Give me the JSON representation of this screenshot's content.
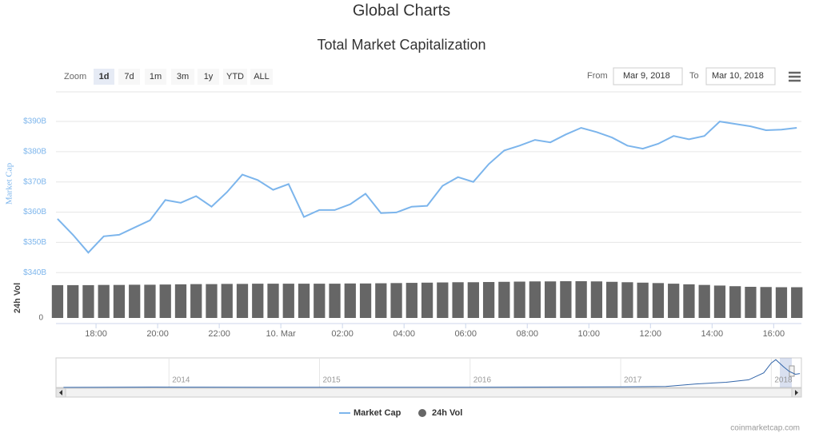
{
  "header": {
    "title": "Global Charts"
  },
  "chart_data": {
    "type": "line",
    "title": "Total Market Capitalization",
    "zoom": {
      "label": "Zoom",
      "buttons": [
        "1d",
        "7d",
        "1m",
        "3m",
        "1y",
        "YTD",
        "ALL"
      ],
      "selected": 0
    },
    "range": {
      "from_label": "From",
      "from": "Mar 9, 2018",
      "to_label": "To",
      "to": "Mar 10, 2018"
    },
    "x": [
      16.75,
      17.25,
      17.75,
      18.25,
      18.75,
      19.25,
      19.75,
      20.25,
      20.75,
      21.25,
      21.75,
      22.25,
      22.75,
      23.25,
      23.75,
      24.25,
      24.75,
      25.25,
      25.75,
      26.25,
      26.75,
      27.25,
      27.75,
      28.25,
      28.75,
      29.25,
      29.75,
      30.25,
      30.75,
      31.25,
      31.75,
      32.25,
      32.75,
      33.25,
      33.75,
      34.25,
      34.75,
      35.25,
      35.75,
      36.25,
      36.75,
      37.25,
      37.75,
      38.25,
      38.75,
      39.25,
      39.75,
      40.25,
      40.75
    ],
    "xlim": [
      16.7,
      40.9
    ],
    "xticks": [
      {
        "value": 18,
        "label": "18:00"
      },
      {
        "value": 20,
        "label": "20:00"
      },
      {
        "value": 22,
        "label": "22:00"
      },
      {
        "value": 24,
        "label": "10. Mar"
      },
      {
        "value": 26,
        "label": "02:00"
      },
      {
        "value": 28,
        "label": "04:00"
      },
      {
        "value": 30,
        "label": "06:00"
      },
      {
        "value": 32,
        "label": "08:00"
      },
      {
        "value": 34,
        "label": "10:00"
      },
      {
        "value": 36,
        "label": "12:00"
      },
      {
        "value": 38,
        "label": "14:00"
      },
      {
        "value": 40,
        "label": "16:00"
      }
    ],
    "ylabel": "Market Cap",
    "ylim": [
      339,
      399
    ],
    "yticks": [
      {
        "value": 340,
        "label": "$340B"
      },
      {
        "value": 350,
        "label": "$350B"
      },
      {
        "value": 360,
        "label": "$360B"
      },
      {
        "value": 370,
        "label": "$370B"
      },
      {
        "value": 380,
        "label": "$380B"
      },
      {
        "value": 390,
        "label": "$390B"
      }
    ],
    "grid": true,
    "y2label": "24h Vol",
    "y2lim": [
      0,
      20
    ],
    "y2ticks": [
      0
    ],
    "series": [
      {
        "name": "Market Cap",
        "color": "#7cb5ec",
        "values": [
          357.8,
          352.5,
          346.6,
          352,
          352.5,
          354.9,
          357.3,
          364,
          363.1,
          365.3,
          361.8,
          366.6,
          372.4,
          370.6,
          367.4,
          369.3,
          358.4,
          360.7,
          360.7,
          362.6,
          366.1,
          359.7,
          359.9,
          361.8,
          362.1,
          368.7,
          371.6,
          370,
          375.9,
          380.4,
          382,
          383.9,
          383.1,
          385.7,
          387.9,
          386.5,
          384.7,
          382,
          381,
          382.6,
          385.2,
          384.1,
          385.2,
          390,
          389.2,
          388.4,
          387.1,
          387.3,
          387.9
        ]
      },
      {
        "name": "24h Vol",
        "color": "#666666",
        "axis": "y2",
        "values": [
          15.8,
          15.8,
          15.8,
          15.9,
          15.9,
          16,
          16,
          16.1,
          16.2,
          16.3,
          16.3,
          16.4,
          16.4,
          16.5,
          16.5,
          16.5,
          16.5,
          16.5,
          16.5,
          16.6,
          16.6,
          16.7,
          16.8,
          16.9,
          17,
          17.1,
          17.2,
          17.2,
          17.3,
          17.4,
          17.5,
          17.6,
          17.6,
          17.7,
          17.7,
          17.6,
          17.4,
          17.2,
          17,
          16.8,
          16.5,
          16.2,
          15.9,
          15.6,
          15.3,
          15,
          14.9,
          14.8,
          14.8
        ]
      }
    ],
    "navigator": {
      "x": [
        2013.3,
        2013.9,
        2014.1,
        2014.6,
        2015.0,
        2015.5,
        2016.0,
        2016.5,
        2017.0,
        2017.3,
        2017.5,
        2017.7,
        2017.85,
        2017.95,
        2018.0,
        2018.03,
        2018.08,
        2018.12,
        2018.16,
        2018.19
      ],
      "values": [
        2,
        12,
        10,
        7,
        5,
        4,
        7,
        11,
        18,
        30,
        100,
        150,
        220,
        420,
        700,
        800,
        600,
        460,
        380,
        400
      ],
      "xlim": [
        2013.25,
        2018.2
      ],
      "ylim": [
        0,
        850
      ],
      "xticks": [
        2014,
        2015,
        2016,
        2017,
        2018
      ]
    },
    "credit": "coinmarketcap.com"
  }
}
